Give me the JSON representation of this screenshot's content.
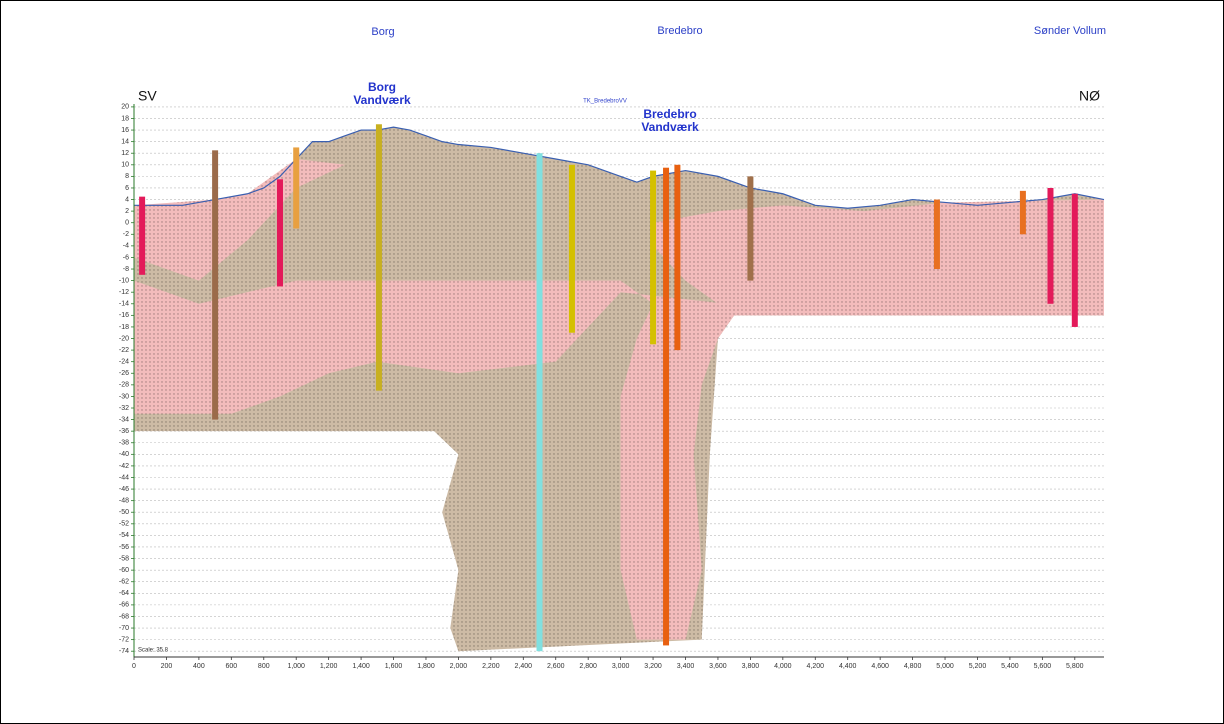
{
  "chart_data": {
    "type": "cross-section",
    "towns": [
      "Borg",
      "Bredebro",
      "Sønder Vollum"
    ],
    "direction_left": "SV",
    "direction_right": "NØ",
    "waterworks": [
      [
        "Borg",
        "Vandværk"
      ],
      [
        "Bredebro",
        "Vandværk"
      ]
    ],
    "profile_name": "TK_BredebroVV",
    "scale_label": "Scale: 35.8",
    "xlim": [
      0,
      5980
    ],
    "ylim": [
      -75,
      20.5
    ],
    "grid": true,
    "xticks": [
      0,
      200,
      400,
      600,
      800,
      {
        "value": 1000,
        "label": "1,000"
      },
      {
        "value": 1200,
        "label": "1,200"
      },
      {
        "value": 1400,
        "label": "1,400"
      },
      {
        "value": 1600,
        "label": "1,600"
      },
      {
        "value": 1800,
        "label": "1,800"
      },
      {
        "value": 2000,
        "label": "2,000"
      },
      {
        "value": 2200,
        "label": "2,200"
      },
      {
        "value": 2400,
        "label": "2,400"
      },
      {
        "value": 2600,
        "label": "2,600"
      },
      {
        "value": 2800,
        "label": "2,800"
      },
      {
        "value": 3000,
        "label": "3,000"
      },
      {
        "value": 3200,
        "label": "3,200"
      },
      {
        "value": 3400,
        "label": "3,400"
      },
      {
        "value": 3600,
        "label": "3,600"
      },
      {
        "value": 3800,
        "label": "3,800"
      },
      {
        "value": 4000,
        "label": "4,000"
      },
      {
        "value": 4200,
        "label": "4,200"
      },
      {
        "value": 4400,
        "label": "4,400"
      },
      {
        "value": 4600,
        "label": "4,600"
      },
      {
        "value": 4800,
        "label": "4,800"
      },
      {
        "value": 5000,
        "label": "5,000"
      },
      {
        "value": 5200,
        "label": "5,200"
      },
      {
        "value": 5400,
        "label": "5,400"
      },
      {
        "value": 5600,
        "label": "5,600"
      },
      {
        "value": 5800,
        "label": "5,800"
      }
    ],
    "yticks": [
      20,
      18,
      16,
      14,
      12,
      10,
      8,
      6,
      4,
      2,
      0,
      -2,
      -4,
      -6,
      -8,
      -10,
      -12,
      -14,
      -16,
      -18,
      -20,
      -22,
      -24,
      -26,
      -28,
      -30,
      -32,
      -34,
      -36,
      -38,
      -40,
      -42,
      -44,
      -46,
      -48,
      -50,
      -52,
      -54,
      -56,
      -58,
      -60,
      -62,
      -64,
      -66,
      -68,
      -70,
      -72,
      -74
    ],
    "terrain": {
      "color": "#3a5fb0",
      "x": [
        0,
        100,
        300,
        500,
        700,
        800,
        900,
        1000,
        1100,
        1200,
        1300,
        1400,
        1500,
        1600,
        1700,
        1800,
        1900,
        2000,
        2200,
        2400,
        2600,
        2800,
        3000,
        3100,
        3200,
        3400,
        3600,
        3800,
        4000,
        4200,
        4400,
        4600,
        4800,
        5000,
        5200,
        5400,
        5600,
        5800,
        5980
      ],
      "y": [
        3,
        3,
        3,
        4,
        5,
        6,
        8,
        11,
        14,
        14,
        15,
        16,
        16,
        16.5,
        16,
        15,
        14,
        13.5,
        13,
        12,
        11,
        10,
        8,
        7,
        8,
        9,
        8,
        6,
        5,
        3,
        2.5,
        3,
        4,
        3.5,
        3,
        3.5,
        4,
        5,
        4
      ]
    },
    "units": [
      {
        "color": "#cdbba5",
        "x": [
          0,
          100,
          300,
          500,
          700,
          800,
          900,
          1000,
          1100,
          1200,
          1300,
          1400,
          1500,
          1600,
          1700,
          1800,
          1900,
          2000,
          2200,
          2400,
          2600,
          2800,
          3000,
          3100,
          3200,
          3400,
          3600,
          3800,
          4000,
          4200,
          4400,
          4600,
          4800,
          5000,
          5200,
          5400,
          5600,
          5800,
          5980,
          5980,
          3700,
          3600,
          3550,
          3500,
          2000,
          1950,
          2000,
          1900,
          2000,
          1850,
          0
        ],
        "y": [
          3,
          3,
          3,
          4,
          5,
          6,
          8,
          11,
          14,
          14,
          15,
          16,
          16,
          16.5,
          16,
          15,
          14,
          13.5,
          13,
          12,
          11,
          10,
          8,
          7,
          8,
          9,
          8,
          6,
          5,
          3,
          2.5,
          3,
          4,
          3.5,
          3,
          3.5,
          4,
          5,
          4,
          -16,
          -16,
          -20,
          -40,
          -72,
          -74,
          -70,
          -60,
          -50,
          -40,
          -36,
          -36
        ]
      },
      {
        "color": "#f3bcbc",
        "x": [
          0,
          400,
          1000,
          2000,
          2600,
          3000,
          3200,
          3100,
          3000,
          3000,
          3100,
          3400,
          3500,
          3450,
          3500,
          3600,
          3700,
          3650,
          3000,
          2600,
          2000,
          1500,
          1200,
          900,
          600,
          0
        ],
        "y": [
          -10,
          -14,
          -10,
          -10,
          -10,
          -10,
          -14,
          -20,
          -30,
          -60,
          -72,
          -72,
          -60,
          -40,
          -28,
          -20,
          -16,
          -14,
          -12,
          -24,
          -26,
          -24,
          -26,
          -30,
          -33,
          -33
        ]
      },
      {
        "color": "#f3bcbc",
        "x": [
          3200,
          3600,
          4000,
          4500,
          5000,
          5980,
          5980,
          3700,
          3400,
          3200
        ],
        "y": [
          0,
          2,
          3,
          2,
          3.5,
          4,
          -16,
          -16,
          -10,
          -4
        ]
      },
      {
        "color": "#f3bcbc",
        "x": [
          0,
          500,
          700,
          1000,
          1300,
          1000,
          700,
          400,
          0
        ],
        "y": [
          3,
          4,
          5,
          11,
          10,
          6,
          -3,
          -10,
          -6
        ]
      }
    ],
    "boreholes": [
      {
        "x": 50,
        "top": 4.5,
        "bottom": -9,
        "color": "#e31a5a"
      },
      {
        "x": 500,
        "top": 12.5,
        "bottom": -34,
        "color": "#9b6b4a"
      },
      {
        "x": 900,
        "top": 7.5,
        "bottom": -11,
        "color": "#e31a5a"
      },
      {
        "x": 1000,
        "top": 13,
        "bottom": -1,
        "color": "#e8a040"
      },
      {
        "x": 1510,
        "top": 17,
        "bottom": -29,
        "color": "#c8b020"
      },
      {
        "x": 2500,
        "top": 12,
        "bottom": -74,
        "color": "#80e0e0"
      },
      {
        "x": 2700,
        "top": 10,
        "bottom": -19,
        "color": "#d4c000"
      },
      {
        "x": 3200,
        "top": 9,
        "bottom": -21,
        "color": "#d4c000"
      },
      {
        "x": 3280,
        "top": 9.5,
        "bottom": -73,
        "color": "#e86010"
      },
      {
        "x": 3350,
        "top": 10,
        "bottom": -22,
        "color": "#e86010"
      },
      {
        "x": 3800,
        "top": 8,
        "bottom": -10,
        "color": "#a0704a"
      },
      {
        "x": 4950,
        "top": 4,
        "bottom": -8,
        "color": "#e87020"
      },
      {
        "x": 5480,
        "top": 5.5,
        "bottom": -2,
        "color": "#e87020"
      },
      {
        "x": 5650,
        "top": 6,
        "bottom": -14,
        "color": "#e31a5a"
      },
      {
        "x": 5800,
        "top": 5,
        "bottom": -18,
        "color": "#e31a5a"
      }
    ]
  }
}
